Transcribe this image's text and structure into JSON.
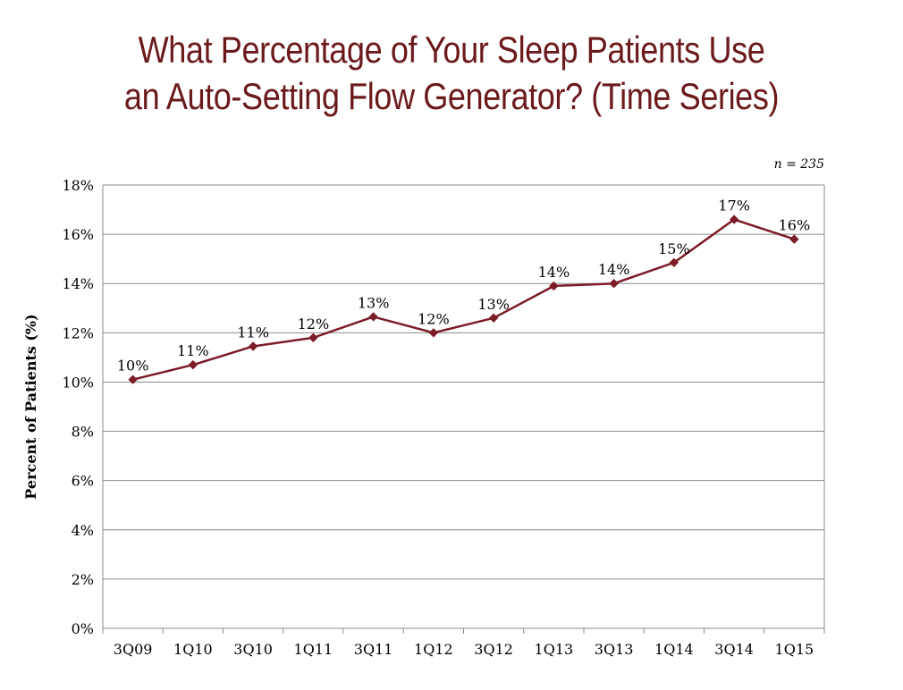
{
  "slide": {
    "title_line1": "What Percentage of Your Sleep Patients Use",
    "title_line2": "an Auto-Setting Flow Generator? (Time Series)",
    "sample_note": "n = 235"
  },
  "colors": {
    "title": "#6b1a1c",
    "series": "#7b1c27",
    "grid": "#8c8c8c"
  },
  "chart_data": {
    "type": "line",
    "title": "What Percentage of Your Sleep Patients Use an Auto-Setting Flow Generator? (Time Series)",
    "ylabel": "Percent of Patients (%)",
    "xlabel": "",
    "categories": [
      "3Q09",
      "1Q10",
      "3Q10",
      "1Q11",
      "3Q11",
      "1Q12",
      "3Q12",
      "1Q13",
      "3Q13",
      "1Q14",
      "3Q14",
      "1Q15"
    ],
    "series": [
      {
        "values": [
          10.1,
          10.7,
          11.45,
          11.8,
          12.65,
          12.0,
          12.6,
          13.9,
          14.0,
          14.85,
          16.6,
          15.8
        ],
        "labels": [
          "10%",
          "11%",
          "11%",
          "12%",
          "13%",
          "12%",
          "13%",
          "14%",
          "14%",
          "15%",
          "17%",
          "16%"
        ]
      }
    ],
    "ylim": [
      0,
      18
    ],
    "yticks": [
      0,
      2,
      4,
      6,
      8,
      10,
      12,
      14,
      16,
      18
    ],
    "ytick_labels": [
      "0%",
      "2%",
      "4%",
      "6%",
      "8%",
      "10%",
      "12%",
      "14%",
      "16%",
      "18%"
    ],
    "grid": true,
    "legend": "none"
  }
}
